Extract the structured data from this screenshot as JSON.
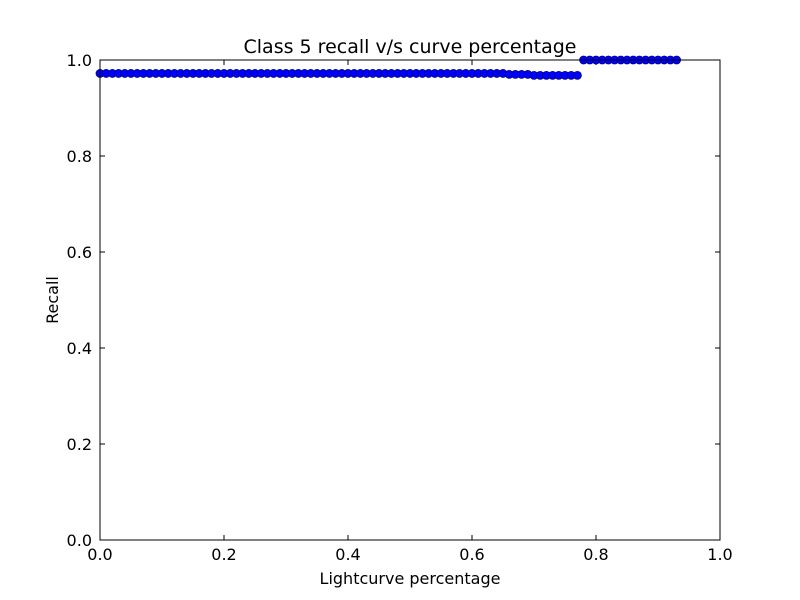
{
  "chart_data": {
    "type": "scatter",
    "title": "Class 5 recall v/s curve percentage",
    "xlabel": "Lightcurve percentage",
    "ylabel": "Recall",
    "xlim": [
      0.0,
      1.0
    ],
    "ylim": [
      0.0,
      1.0
    ],
    "xticks": [
      "0.0",
      "0.2",
      "0.4",
      "0.6",
      "0.8",
      "1.0"
    ],
    "yticks": [
      "0.0",
      "0.2",
      "0.4",
      "0.6",
      "0.8",
      "1.0"
    ],
    "grid": false,
    "legend": "none",
    "marker_color": "#0000ff",
    "marker_edge_color": "#000080",
    "series": [
      {
        "x": [
          0.0,
          0.01,
          0.02,
          0.03,
          0.04,
          0.05,
          0.06,
          0.07,
          0.08,
          0.09,
          0.1,
          0.11,
          0.12,
          0.13,
          0.14,
          0.15,
          0.16,
          0.17,
          0.18,
          0.19,
          0.2,
          0.21,
          0.22,
          0.23,
          0.24,
          0.25,
          0.26,
          0.27,
          0.28,
          0.29,
          0.3,
          0.31,
          0.32,
          0.33,
          0.34,
          0.35,
          0.36,
          0.37,
          0.38,
          0.39,
          0.4,
          0.41,
          0.42,
          0.43,
          0.44,
          0.45,
          0.46,
          0.47,
          0.48,
          0.49,
          0.5,
          0.51,
          0.52,
          0.53,
          0.54,
          0.55,
          0.56,
          0.57,
          0.58,
          0.59,
          0.6,
          0.61,
          0.62,
          0.63,
          0.64,
          0.65,
          0.66,
          0.67,
          0.68,
          0.69,
          0.7,
          0.71,
          0.72,
          0.73,
          0.74,
          0.75,
          0.76,
          0.77,
          0.78,
          0.79,
          0.8,
          0.81,
          0.82,
          0.83,
          0.84,
          0.85,
          0.86,
          0.87,
          0.88,
          0.89,
          0.9,
          0.91,
          0.92,
          0.93
        ],
        "y": [
          0.972,
          0.972,
          0.972,
          0.972,
          0.972,
          0.972,
          0.972,
          0.972,
          0.972,
          0.972,
          0.972,
          0.972,
          0.972,
          0.972,
          0.972,
          0.972,
          0.972,
          0.972,
          0.972,
          0.972,
          0.972,
          0.972,
          0.972,
          0.972,
          0.972,
          0.972,
          0.972,
          0.972,
          0.972,
          0.972,
          0.972,
          0.972,
          0.972,
          0.972,
          0.972,
          0.972,
          0.972,
          0.972,
          0.972,
          0.972,
          0.972,
          0.972,
          0.972,
          0.972,
          0.972,
          0.972,
          0.972,
          0.972,
          0.972,
          0.972,
          0.972,
          0.972,
          0.972,
          0.972,
          0.972,
          0.972,
          0.972,
          0.972,
          0.972,
          0.972,
          0.972,
          0.972,
          0.972,
          0.972,
          0.972,
          0.972,
          0.97,
          0.97,
          0.97,
          0.97,
          0.968,
          0.968,
          0.968,
          0.968,
          0.968,
          0.968,
          0.968,
          0.968,
          1.0,
          1.0,
          1.0,
          1.0,
          1.0,
          1.0,
          1.0,
          1.0,
          1.0,
          1.0,
          1.0,
          1.0,
          1.0,
          1.0,
          1.0,
          1.0
        ]
      }
    ]
  }
}
